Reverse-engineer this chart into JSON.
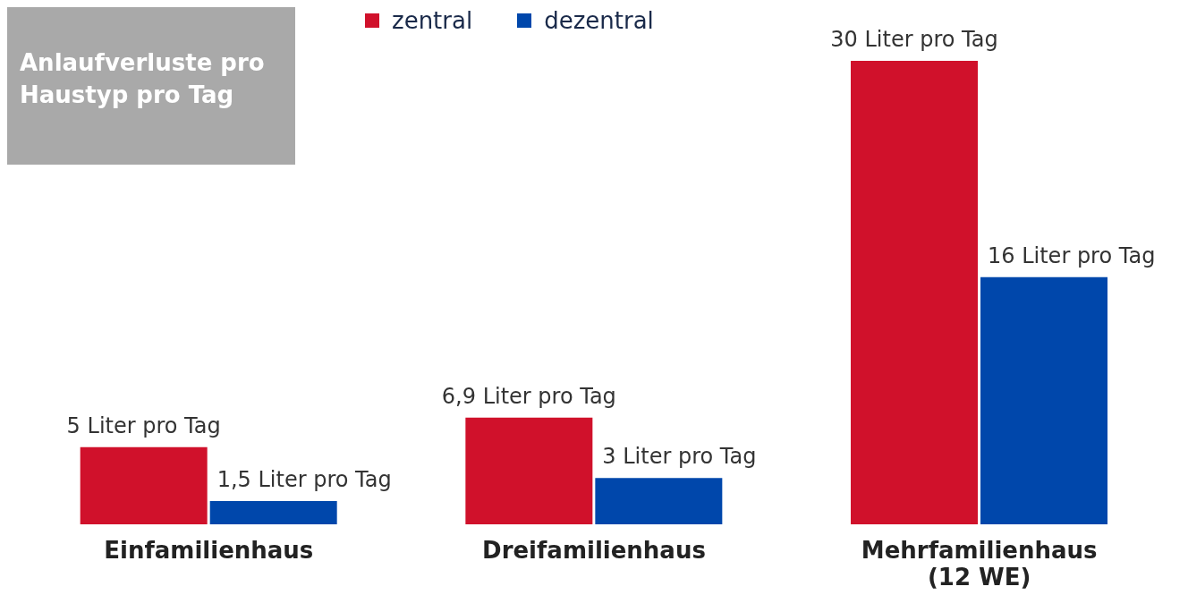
{
  "chart_data": {
    "type": "bar",
    "title": "Anlaufverluste pro Haustyp pro Tag",
    "categories": [
      "Einfamilienhaus",
      "Dreifamilienhaus",
      "Mehrfamilienhaus (12 WE)"
    ],
    "series": [
      {
        "name": "zentral",
        "color": "#d0112b",
        "values": [
          5,
          6.9,
          30
        ],
        "value_labels": [
          "5 Liter pro Tag",
          "6,9 Liter pro Tag",
          "30 Liter pro Tag"
        ]
      },
      {
        "name": "dezentral",
        "color": "#0047ab",
        "values": [
          1.5,
          3,
          16
        ],
        "value_labels": [
          "1,5 Liter pro Tag",
          "3 Liter pro Tag",
          "16 Liter pro Tag"
        ]
      }
    ],
    "legend": "top",
    "grid": false
  }
}
